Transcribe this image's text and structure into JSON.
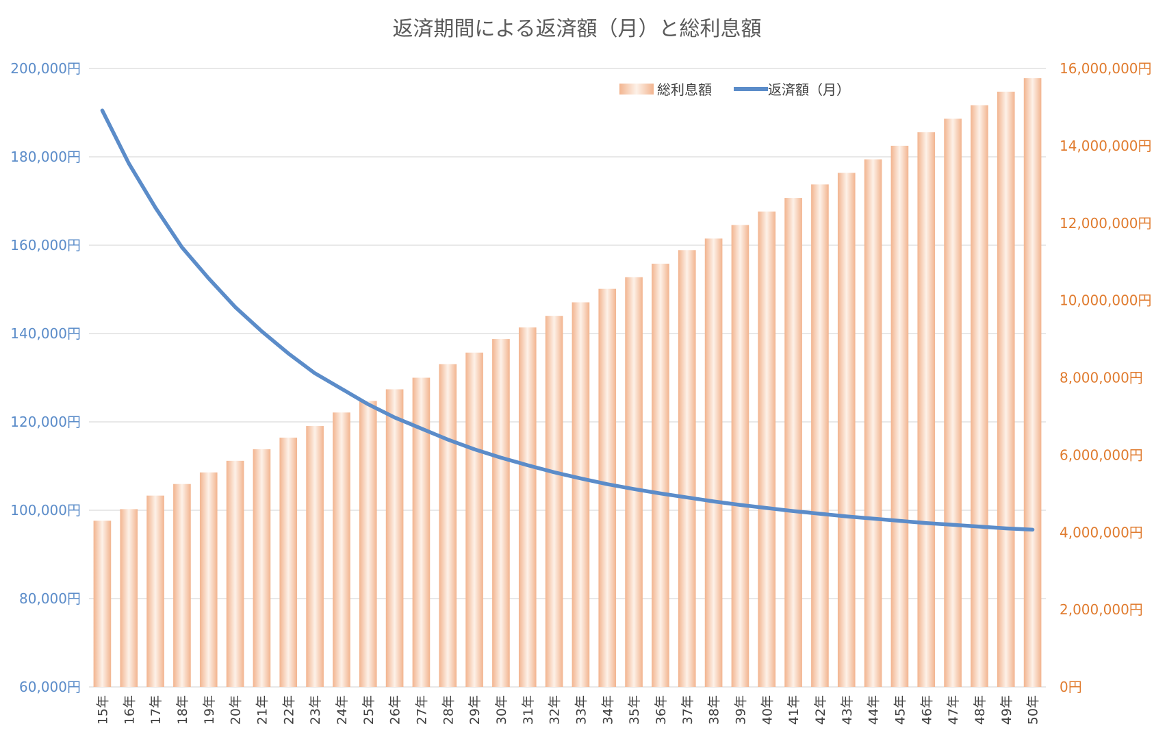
{
  "chart_data": {
    "type": "bar",
    "title": "返済期間による返済額（月）と総利息額",
    "categories": [
      "15年",
      "16年",
      "17年",
      "18年",
      "19年",
      "20年",
      "21年",
      "22年",
      "23年",
      "24年",
      "25年",
      "26年",
      "27年",
      "28年",
      "29年",
      "30年",
      "31年",
      "32年",
      "33年",
      "34年",
      "35年",
      "36年",
      "37年",
      "38年",
      "39年",
      "40年",
      "41年",
      "42年",
      "43年",
      "44年",
      "45年",
      "46年",
      "47年",
      "48年",
      "49年",
      "50年"
    ],
    "series": [
      {
        "name": "総利息額",
        "type": "bar",
        "axis": "right",
        "color": "#f2b48f",
        "values": [
          4300000,
          4600000,
          4950000,
          5250000,
          5550000,
          5850000,
          6150000,
          6450000,
          6750000,
          7100000,
          7400000,
          7700000,
          8000000,
          8350000,
          8650000,
          9000000,
          9300000,
          9600000,
          9950000,
          10300000,
          10600000,
          10950000,
          11300000,
          11600000,
          11950000,
          12300000,
          12650000,
          13000000,
          13300000,
          13650000,
          14000000,
          14350000,
          14700000,
          15050000,
          15400000,
          15750000
        ]
      },
      {
        "name": "返済額（月）",
        "type": "line",
        "axis": "left",
        "color": "#5b8cc9",
        "values": [
          190500,
          178500,
          168500,
          159500,
          152500,
          146000,
          140500,
          135500,
          131000,
          127500,
          124000,
          121000,
          118500,
          116000,
          113800,
          111900,
          110200,
          108600,
          107200,
          105900,
          104800,
          103800,
          102900,
          102000,
          101200,
          100500,
          99800,
          99200,
          98600,
          98100,
          97600,
          97100,
          96700,
          96300,
          95900,
          95600
        ]
      }
    ],
    "y_left": {
      "ylim": [
        60000,
        200000
      ],
      "ticks": [
        "60,000円",
        "80,000円",
        "100,000円",
        "120,000円",
        "140,000円",
        "160,000円",
        "180,000円",
        "200,000円"
      ],
      "color": "#5b8cc9"
    },
    "y_right": {
      "ylim": [
        0,
        16000000
      ],
      "ticks": [
        "0円",
        "2,000,000円",
        "4,000,000円",
        "6,000,000円",
        "8,000,000円",
        "10,000,000円",
        "12,000,000円",
        "14,000,000円",
        "16,000,000円"
      ],
      "color": "#e07b2e"
    },
    "legend": {
      "position": "top-right",
      "entries": [
        "総利息額",
        "返済額（月）"
      ]
    },
    "grid": true
  }
}
